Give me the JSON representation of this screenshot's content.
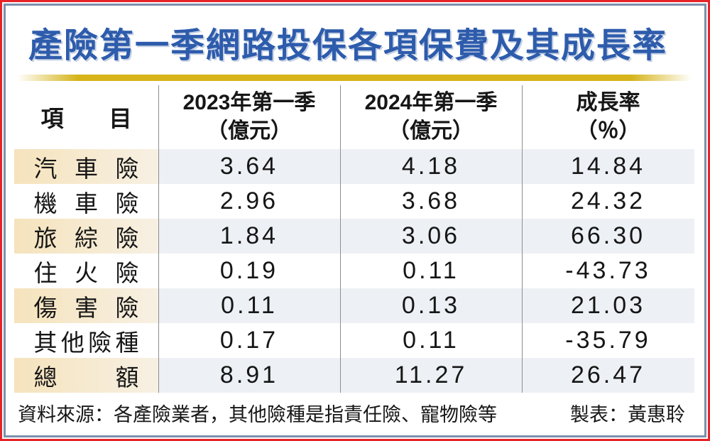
{
  "title": "產險第一季網路投保各項保費及其成長率",
  "chart_data": {
    "type": "table",
    "title": "產險第一季網路投保各項保費及其成長率",
    "columns": [
      "項目",
      "2023年第一季（億元）",
      "2024年第一季（億元）",
      "成長率（％）"
    ],
    "rows": [
      {
        "item": "汽車險",
        "q1_2023": 3.64,
        "q1_2024": 4.18,
        "growth_pct": 14.84
      },
      {
        "item": "機車險",
        "q1_2023": 2.96,
        "q1_2024": 3.68,
        "growth_pct": 24.32
      },
      {
        "item": "旅綜險",
        "q1_2023": 1.84,
        "q1_2024": 3.06,
        "growth_pct": 66.3
      },
      {
        "item": "住火險",
        "q1_2023": 0.19,
        "q1_2024": 0.11,
        "growth_pct": -43.73
      },
      {
        "item": "傷害險",
        "q1_2023": 0.11,
        "q1_2024": 0.13,
        "growth_pct": 21.03
      },
      {
        "item": "其他險種",
        "q1_2023": 0.17,
        "q1_2024": 0.11,
        "growth_pct": -35.79
      },
      {
        "item": "總額",
        "q1_2023": 8.91,
        "q1_2024": 11.27,
        "growth_pct": 26.47
      }
    ]
  },
  "table": {
    "header": {
      "item": "項目",
      "col2023_line1": "2023年第一季",
      "col2023_line2": "（億元）",
      "col2024_line1": "2024年第一季",
      "col2024_line2": "（億元）",
      "growth_line1": "成長率",
      "growth_line2": "（％）"
    },
    "rows": [
      {
        "item": "汽車險",
        "v2023": "3.64",
        "v2024": "4.18",
        "growth": "14.84"
      },
      {
        "item": "機車險",
        "v2023": "2.96",
        "v2024": "3.68",
        "growth": "24.32"
      },
      {
        "item": "旅綜險",
        "v2023": "1.84",
        "v2024": "3.06",
        "growth": "66.30"
      },
      {
        "item": "住火險",
        "v2023": "0.19",
        "v2024": "0.11",
        "growth": "-43.73"
      },
      {
        "item": "傷害險",
        "v2023": "0.11",
        "v2024": "0.13",
        "growth": "21.03"
      },
      {
        "item": "其他險種",
        "v2023": "0.17",
        "v2024": "0.11",
        "growth": "-35.79"
      },
      {
        "item": "總額",
        "v2023": "8.91",
        "v2024": "11.27",
        "growth": "26.47"
      }
    ]
  },
  "footer": {
    "source": "資料來源：各產險業者，其他險種是指責任險、寵物險等",
    "credit": "製表：黃惠聆"
  },
  "colors": {
    "title_blue": "#2e5cac",
    "gold_bar": "#d6b41a",
    "row_cream_left": "#f5e3bc",
    "row_cream_right": "#f7f0e3",
    "row_blue_gray": "#edf0f4",
    "outer_border_red": "#e52328",
    "inner_border_slate": "#7d90ac",
    "column_divider_gray": "#8e8e8e"
  }
}
